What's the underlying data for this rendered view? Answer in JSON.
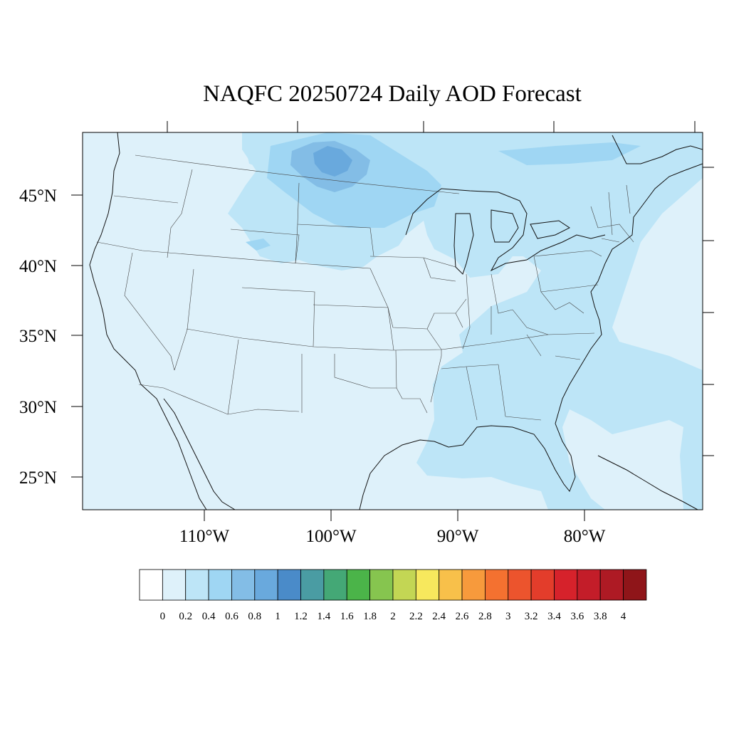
{
  "title": "NAQFC 20250724 Daily AOD Forecast",
  "map": {
    "lat_labels": [
      "45°N",
      "40°N",
      "35°N",
      "30°N",
      "25°N"
    ],
    "lon_labels": [
      "110°W",
      "100°W",
      "90°W",
      "80°W"
    ],
    "background_color": "#DEF1FA"
  },
  "colorbar": {
    "levels": [
      "0",
      "0.2",
      "0.4",
      "0.6",
      "0.8",
      "1",
      "1.2",
      "1.4",
      "1.6",
      "1.8",
      "2",
      "2.2",
      "2.4",
      "2.6",
      "2.8",
      "3",
      "3.2",
      "3.4",
      "3.6",
      "3.8",
      "4"
    ],
    "colors": [
      "#FFFFFF",
      "#DEF1FA",
      "#BDE5F7",
      "#9FD6F3",
      "#83BDE6",
      "#69A9DD",
      "#4A8BC9",
      "#4A9CA3",
      "#44A876",
      "#4BB449",
      "#86C54F",
      "#C3D654",
      "#F7E85D",
      "#F8C04A",
      "#F79A3C",
      "#F47130",
      "#EC542D",
      "#E33D2B",
      "#D6222B",
      "#C31D29",
      "#AE1A24",
      "#8F1519"
    ]
  }
}
